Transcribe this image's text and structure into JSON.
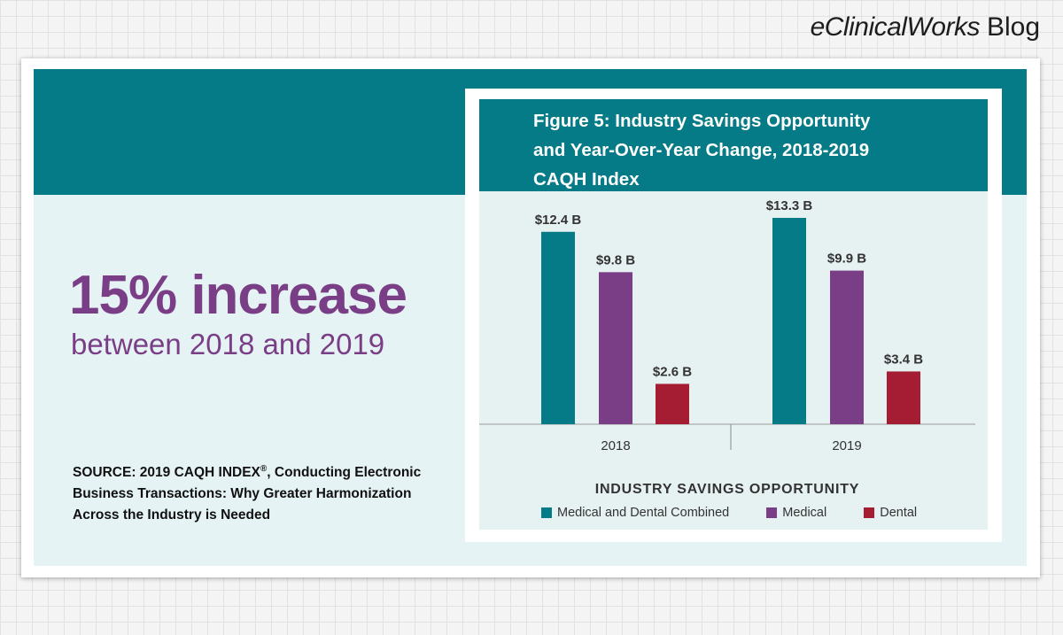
{
  "brand": {
    "name": "eClinicalWorks",
    "suffix": "Blog"
  },
  "headline": {
    "main": "15% increase",
    "sub": "between 2018 and 2019"
  },
  "source": {
    "prefix": "SOURCE: 2019 CAQH INDEX",
    "mark": "®",
    "rest": ", Conducting Electronic Business Transactions: Why Greater Harmonization Across the Industry is Needed"
  },
  "colors": {
    "teal": "#047b86",
    "purple": "#7a3e87",
    "dental_red": "#a51d32",
    "plot_bg": "#e6f1f2"
  },
  "chart_data": {
    "type": "bar",
    "title_lines": [
      "Figure 5: Industry Savings Opportunity",
      "and Year-Over-Year Change, 2018-2019",
      "CAQH Index"
    ],
    "xlabel": "INDUSTRY SAVINGS OPPORTUNITY",
    "ylabel": "",
    "categories": [
      "2018",
      "2019"
    ],
    "series": [
      {
        "name": "Medical and Dental Combined",
        "color": "#047b86",
        "values": [
          12.4,
          13.3
        ],
        "labels": [
          "$12.4 B",
          "$13.3 B"
        ]
      },
      {
        "name": "Medical",
        "color": "#7a3e87",
        "values": [
          9.8,
          9.9
        ],
        "labels": [
          "$9.8 B",
          "$9.9 B"
        ]
      },
      {
        "name": "Dental",
        "color": "#a51d32",
        "values": [
          2.6,
          3.4
        ],
        "labels": [
          "$2.6 B",
          "$3.4 B"
        ]
      }
    ],
    "ylim": [
      0,
      13.3
    ],
    "grid": false,
    "legend": "bottom"
  }
}
